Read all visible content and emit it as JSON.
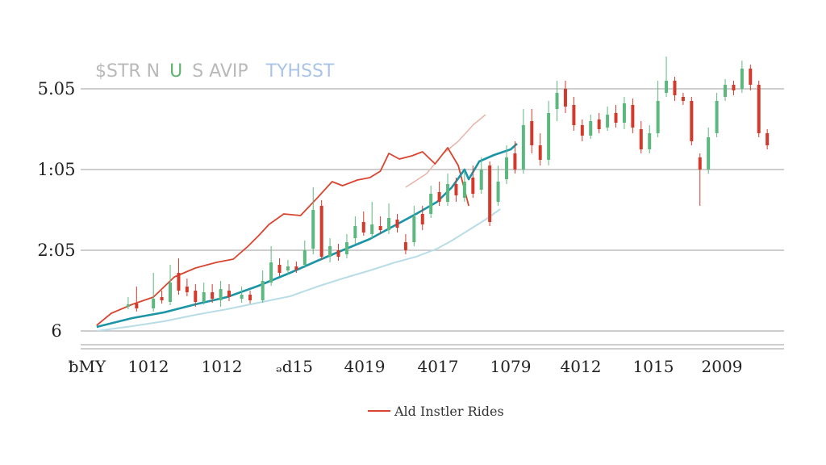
{
  "title_parts": [
    {
      "text": "$STR N",
      "color": "#b9b9b9"
    },
    {
      "text": "U",
      "color": "#5cb56e"
    },
    {
      "text": "S AVIP",
      "color": "#b9b9b9"
    },
    {
      "text": "TYHSST",
      "color": "#a9c4e8"
    }
  ],
  "colors": {
    "up": "#5cb87f",
    "down": "#d33a2c",
    "grid": "#bdbdbd",
    "red_line": "#d9452f",
    "teal_line": "#1a94a6",
    "light_line": "#b8dde6",
    "pink_line": "#e8b4a9"
  },
  "chart_data": {
    "type": "line",
    "title": "",
    "xlabel": "",
    "ylabel": "",
    "y_ticks": [
      "5.05",
      "1:05",
      "2:05",
      "6"
    ],
    "x_ticks": [
      "ƀMY",
      "1012",
      "1012",
      "ₔd15",
      "4019",
      "4017",
      "1079",
      "4012",
      "1015",
      "2009"
    ],
    "ylim": [
      0,
      4
    ],
    "legend": {
      "position": "bottom-center",
      "entries": [
        "Ald Instler Rides"
      ]
    },
    "grid": true,
    "series": [
      {
        "name": "Ald Instler Rides",
        "style": "red",
        "values": [
          [
            0.03,
            0.07
          ],
          [
            0.1,
            0.22
          ],
          [
            0.2,
            0.33
          ],
          [
            0.3,
            0.42
          ],
          [
            0.4,
            0.67
          ],
          [
            0.5,
            0.78
          ],
          [
            0.6,
            0.85
          ],
          [
            0.68,
            0.89
          ],
          [
            0.75,
            1.05
          ],
          [
            0.8,
            1.18
          ],
          [
            0.85,
            1.32
          ],
          [
            0.92,
            1.45
          ],
          [
            1.0,
            1.43
          ],
          [
            1.08,
            1.65
          ],
          [
            1.15,
            1.85
          ],
          [
            1.2,
            1.8
          ],
          [
            1.27,
            1.87
          ],
          [
            1.33,
            1.9
          ],
          [
            1.38,
            1.98
          ],
          [
            1.42,
            2.2
          ],
          [
            1.47,
            2.13
          ],
          [
            1.53,
            2.17
          ],
          [
            1.58,
            2.22
          ],
          [
            1.64,
            2.07
          ],
          [
            1.7,
            2.27
          ],
          [
            1.75,
            2.05
          ],
          [
            1.8,
            1.55
          ]
        ]
      },
      {
        "style": "teal",
        "values": [
          [
            0.03,
            0.05
          ],
          [
            0.2,
            0.16
          ],
          [
            0.35,
            0.23
          ],
          [
            0.5,
            0.33
          ],
          [
            0.65,
            0.42
          ],
          [
            0.8,
            0.56
          ],
          [
            0.95,
            0.72
          ],
          [
            1.08,
            0.87
          ],
          [
            1.2,
            1.0
          ],
          [
            1.33,
            1.14
          ],
          [
            1.45,
            1.31
          ],
          [
            1.55,
            1.45
          ],
          [
            1.65,
            1.6
          ],
          [
            1.72,
            1.78
          ],
          [
            1.78,
            2.0
          ],
          [
            1.8,
            1.88
          ],
          [
            1.85,
            2.1
          ],
          [
            1.92,
            2.18
          ],
          [
            2.0,
            2.25
          ],
          [
            2.03,
            2.32
          ]
        ]
      },
      {
        "style": "light",
        "values": [
          [
            0.03,
            0.0
          ],
          [
            0.2,
            0.06
          ],
          [
            0.35,
            0.12
          ],
          [
            0.5,
            0.2
          ],
          [
            0.65,
            0.27
          ],
          [
            0.8,
            0.35
          ],
          [
            0.95,
            0.43
          ],
          [
            1.08,
            0.55
          ],
          [
            1.2,
            0.65
          ],
          [
            1.33,
            0.75
          ],
          [
            1.45,
            0.85
          ],
          [
            1.55,
            0.92
          ],
          [
            1.65,
            1.02
          ],
          [
            1.72,
            1.12
          ],
          [
            1.8,
            1.25
          ],
          [
            1.88,
            1.38
          ],
          [
            1.95,
            1.51
          ]
        ]
      },
      {
        "style": "pink",
        "values": [
          [
            1.5,
            1.78
          ],
          [
            1.6,
            1.95
          ],
          [
            1.68,
            2.2
          ],
          [
            1.75,
            2.35
          ],
          [
            1.82,
            2.55
          ],
          [
            1.88,
            2.68
          ]
        ]
      }
    ],
    "candles": [
      {
        "x": 0.18,
        "o": 0.3,
        "c": 0.33,
        "h": 0.42,
        "l": 0.27
      },
      {
        "x": 0.22,
        "o": 0.34,
        "c": 0.28,
        "h": 0.55,
        "l": 0.24
      },
      {
        "x": 0.3,
        "o": 0.28,
        "c": 0.4,
        "h": 0.72,
        "l": 0.24
      },
      {
        "x": 0.34,
        "o": 0.42,
        "c": 0.38,
        "h": 0.5,
        "l": 0.34
      },
      {
        "x": 0.38,
        "o": 0.36,
        "c": 0.6,
        "h": 0.82,
        "l": 0.32
      },
      {
        "x": 0.42,
        "o": 0.72,
        "c": 0.5,
        "h": 0.9,
        "l": 0.45
      },
      {
        "x": 0.46,
        "o": 0.55,
        "c": 0.48,
        "h": 0.65,
        "l": 0.43
      },
      {
        "x": 0.5,
        "o": 0.5,
        "c": 0.36,
        "h": 0.58,
        "l": 0.3
      },
      {
        "x": 0.54,
        "o": 0.36,
        "c": 0.48,
        "h": 0.6,
        "l": 0.33
      },
      {
        "x": 0.58,
        "o": 0.48,
        "c": 0.4,
        "h": 0.58,
        "l": 0.35
      },
      {
        "x": 0.62,
        "o": 0.38,
        "c": 0.52,
        "h": 0.62,
        "l": 0.3
      },
      {
        "x": 0.66,
        "o": 0.5,
        "c": 0.42,
        "h": 0.58,
        "l": 0.37
      },
      {
        "x": 0.72,
        "o": 0.4,
        "c": 0.45,
        "h": 0.55,
        "l": 0.35
      },
      {
        "x": 0.76,
        "o": 0.45,
        "c": 0.38,
        "h": 0.5,
        "l": 0.34
      },
      {
        "x": 0.82,
        "o": 0.38,
        "c": 0.62,
        "h": 0.75,
        "l": 0.35
      },
      {
        "x": 0.86,
        "o": 0.6,
        "c": 0.85,
        "h": 1.05,
        "l": 0.56
      },
      {
        "x": 0.9,
        "o": 0.82,
        "c": 0.72,
        "h": 0.9,
        "l": 0.68
      },
      {
        "x": 0.94,
        "o": 0.75,
        "c": 0.8,
        "h": 0.88,
        "l": 0.7
      },
      {
        "x": 0.98,
        "o": 0.8,
        "c": 0.76,
        "h": 0.86,
        "l": 0.72
      },
      {
        "x": 1.02,
        "o": 0.82,
        "c": 1.0,
        "h": 1.12,
        "l": 0.78
      },
      {
        "x": 1.06,
        "o": 1.02,
        "c": 1.5,
        "h": 1.78,
        "l": 0.95
      },
      {
        "x": 1.1,
        "o": 1.55,
        "c": 0.92,
        "h": 1.62,
        "l": 0.88
      },
      {
        "x": 1.14,
        "o": 0.92,
        "c": 1.05,
        "h": 1.15,
        "l": 0.85
      },
      {
        "x": 1.18,
        "o": 1.0,
        "c": 0.92,
        "h": 1.08,
        "l": 0.87
      },
      {
        "x": 1.22,
        "o": 0.95,
        "c": 1.1,
        "h": 1.2,
        "l": 0.9
      },
      {
        "x": 1.26,
        "o": 1.15,
        "c": 1.3,
        "h": 1.42,
        "l": 1.08
      },
      {
        "x": 1.3,
        "o": 1.35,
        "c": 1.22,
        "h": 1.48,
        "l": 1.18
      },
      {
        "x": 1.34,
        "o": 1.2,
        "c": 1.32,
        "h": 1.6,
        "l": 1.15
      },
      {
        "x": 1.38,
        "o": 1.3,
        "c": 1.25,
        "h": 1.42,
        "l": 1.2
      },
      {
        "x": 1.42,
        "o": 1.25,
        "c": 1.4,
        "h": 1.58,
        "l": 1.2
      },
      {
        "x": 1.46,
        "o": 1.38,
        "c": 1.28,
        "h": 1.45,
        "l": 1.22
      },
      {
        "x": 1.5,
        "o": 1.1,
        "c": 1.0,
        "h": 1.2,
        "l": 0.95
      },
      {
        "x": 1.54,
        "o": 1.1,
        "c": 1.42,
        "h": 1.55,
        "l": 1.05
      },
      {
        "x": 1.58,
        "o": 1.45,
        "c": 1.32,
        "h": 1.55,
        "l": 1.25
      },
      {
        "x": 1.62,
        "o": 1.45,
        "c": 1.7,
        "h": 1.8,
        "l": 1.4
      },
      {
        "x": 1.66,
        "o": 1.72,
        "c": 1.6,
        "h": 1.85,
        "l": 1.55
      },
      {
        "x": 1.7,
        "o": 1.6,
        "c": 1.82,
        "h": 1.95,
        "l": 1.55
      },
      {
        "x": 1.74,
        "o": 1.82,
        "c": 1.68,
        "h": 1.9,
        "l": 1.6
      },
      {
        "x": 1.78,
        "o": 1.65,
        "c": 1.85,
        "h": 1.98,
        "l": 1.6
      },
      {
        "x": 1.82,
        "o": 1.9,
        "c": 1.7,
        "h": 2.05,
        "l": 1.65
      },
      {
        "x": 1.86,
        "o": 1.75,
        "c": 2.0,
        "h": 2.15,
        "l": 1.7
      },
      {
        "x": 1.9,
        "o": 2.05,
        "c": 1.35,
        "h": 2.1,
        "l": 1.3
      },
      {
        "x": 1.94,
        "o": 1.6,
        "c": 1.85,
        "h": 2.05,
        "l": 1.55
      },
      {
        "x": 1.98,
        "o": 1.88,
        "c": 2.15,
        "h": 2.3,
        "l": 1.82
      },
      {
        "x": 2.02,
        "o": 2.2,
        "c": 2.0,
        "h": 2.35,
        "l": 1.95
      },
      {
        "x": 2.06,
        "o": 2.0,
        "c": 2.55,
        "h": 2.75,
        "l": 1.95
      },
      {
        "x": 2.1,
        "o": 2.6,
        "c": 2.3,
        "h": 2.75,
        "l": 2.2
      },
      {
        "x": 2.14,
        "o": 2.3,
        "c": 2.12,
        "h": 2.45,
        "l": 2.05
      },
      {
        "x": 2.18,
        "o": 2.12,
        "c": 2.7,
        "h": 2.85,
        "l": 2.05
      },
      {
        "x": 2.22,
        "o": 2.75,
        "c": 2.95,
        "h": 3.1,
        "l": 2.6
      },
      {
        "x": 2.26,
        "o": 3.0,
        "c": 2.78,
        "h": 3.1,
        "l": 2.7
      },
      {
        "x": 2.3,
        "o": 2.8,
        "c": 2.55,
        "h": 2.9,
        "l": 2.48
      },
      {
        "x": 2.34,
        "o": 2.55,
        "c": 2.42,
        "h": 2.62,
        "l": 2.35
      },
      {
        "x": 2.38,
        "o": 2.42,
        "c": 2.6,
        "h": 2.68,
        "l": 2.38
      },
      {
        "x": 2.42,
        "o": 2.62,
        "c": 2.5,
        "h": 2.7,
        "l": 2.45
      },
      {
        "x": 2.46,
        "o": 2.52,
        "c": 2.68,
        "h": 2.78,
        "l": 2.48
      },
      {
        "x": 2.5,
        "o": 2.7,
        "c": 2.58,
        "h": 2.8,
        "l": 2.52
      },
      {
        "x": 2.54,
        "o": 2.58,
        "c": 2.82,
        "h": 2.9,
        "l": 2.5
      },
      {
        "x": 2.58,
        "o": 2.8,
        "c": 2.52,
        "h": 2.88,
        "l": 2.45
      },
      {
        "x": 2.62,
        "o": 2.5,
        "c": 2.25,
        "h": 2.6,
        "l": 2.2
      },
      {
        "x": 2.66,
        "o": 2.25,
        "c": 2.45,
        "h": 2.55,
        "l": 2.2
      },
      {
        "x": 2.7,
        "o": 2.45,
        "c": 2.85,
        "h": 3.1,
        "l": 2.4
      },
      {
        "x": 2.74,
        "o": 2.95,
        "c": 3.1,
        "h": 3.4,
        "l": 2.9
      },
      {
        "x": 2.78,
        "o": 3.1,
        "c": 2.92,
        "h": 3.15,
        "l": 2.85
      },
      {
        "x": 2.82,
        "o": 2.9,
        "c": 2.85,
        "h": 2.95,
        "l": 2.8
      },
      {
        "x": 2.86,
        "o": 2.85,
        "c": 2.35,
        "h": 2.9,
        "l": 2.3
      },
      {
        "x": 2.9,
        "o": 2.15,
        "c": 2.0,
        "h": 2.2,
        "l": 1.55
      },
      {
        "x": 2.94,
        "o": 2.0,
        "c": 2.4,
        "h": 2.52,
        "l": 1.95
      },
      {
        "x": 2.98,
        "o": 2.45,
        "c": 2.85,
        "h": 2.95,
        "l": 2.4
      },
      {
        "x": 3.02,
        "o": 2.9,
        "c": 3.05,
        "h": 3.12,
        "l": 2.85
      },
      {
        "x": 3.06,
        "o": 3.05,
        "c": 2.98,
        "h": 3.1,
        "l": 2.92
      },
      {
        "x": 3.1,
        "o": 3.0,
        "c": 3.25,
        "h": 3.35,
        "l": 2.95
      },
      {
        "x": 3.14,
        "o": 3.25,
        "c": 3.05,
        "h": 3.3,
        "l": 2.98
      },
      {
        "x": 3.18,
        "o": 3.05,
        "c": 2.45,
        "h": 3.1,
        "l": 2.4
      },
      {
        "x": 3.22,
        "o": 2.45,
        "c": 2.3,
        "h": 2.5,
        "l": 2.25
      }
    ],
    "xlim": [
      0,
      3.3
    ]
  }
}
